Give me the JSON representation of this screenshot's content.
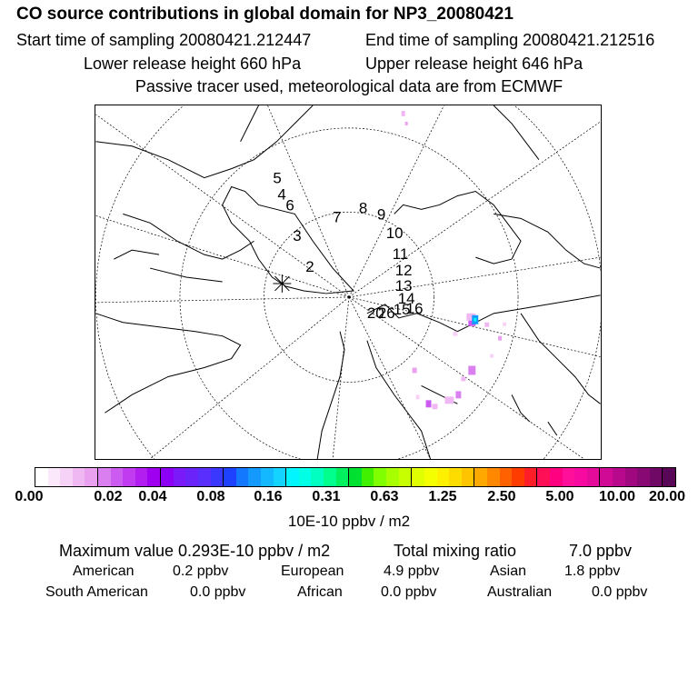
{
  "header": {
    "title": "CO  source contributions in global domain for NP3_20080421",
    "start_time": "Start time of sampling 20080421.212447",
    "end_time": "End time of sampling 20080421.212516",
    "lower_release": "Lower release height  660 hPa",
    "upper_release": "Upper release height  646 hPa",
    "note": "Passive tracer used, meteorological data are from ECMWF"
  },
  "chart_data": {
    "type": "heatmap",
    "title": "CO  source contributions in global domain for NP3_20080421",
    "projection": "polar stereographic (north pole)",
    "colorbar": {
      "unit": "10E-10 ppbv / m2",
      "ticks": [
        "0.00",
        "0.02",
        "0.04",
        "0.08",
        "0.16",
        "0.31",
        "0.63",
        "1.25",
        "2.50",
        "5.00",
        "10.00",
        "20.00"
      ],
      "colors": [
        "#ffffff",
        "#fbe8fb",
        "#f6d2f7",
        "#f0b8f3",
        "#e9a0ef",
        "#d97ff0",
        "#cc5cf0",
        "#c13bf0",
        "#b31ef0",
        "#a000f0",
        "#8c00f5",
        "#7a1af8",
        "#6a24fa",
        "#5a2efc",
        "#3a38fe",
        "#1e40ff",
        "#1478ff",
        "#149aff",
        "#14b8ff",
        "#14d4ff",
        "#00f5ff",
        "#00ffe4",
        "#00ffc0",
        "#00ff8c",
        "#00f060",
        "#00e030",
        "#40f000",
        "#80ff00",
        "#a8ff00",
        "#c8ff00",
        "#e0ff00",
        "#f4ff00",
        "#fff000",
        "#ffdc00",
        "#ffc400",
        "#ffa800",
        "#ff8800",
        "#ff6000",
        "#ff3c00",
        "#ff1e28",
        "#ff0f55",
        "#ff0080",
        "#ff0f9a",
        "#f60aa0",
        "#e40a9a",
        "#d00a94",
        "#b8088c",
        "#a00880",
        "#880874",
        "#700866",
        "#580656"
      ]
    },
    "track_labels": [
      "2",
      "3",
      "4",
      "5",
      "6",
      "7",
      "8",
      "9",
      "10",
      "11",
      "12",
      "13",
      "14",
      "15",
      "16",
      "20",
      "26"
    ],
    "max_value": "Maximum value  0.293E-10 ppbv / m2",
    "total_label": "Total mixing ratio",
    "total_value": "7.0 ppbv",
    "regions": [
      {
        "name": "American",
        "value": "0.2 ppbv"
      },
      {
        "name": "European",
        "value": "4.9 ppbv"
      },
      {
        "name": "Asian",
        "value": "1.8 ppbv"
      },
      {
        "name": "South American",
        "value": "0.0 ppbv"
      },
      {
        "name": "African",
        "value": "0.0 ppbv"
      },
      {
        "name": "Australian",
        "value": "0.0 ppbv"
      }
    ]
  }
}
